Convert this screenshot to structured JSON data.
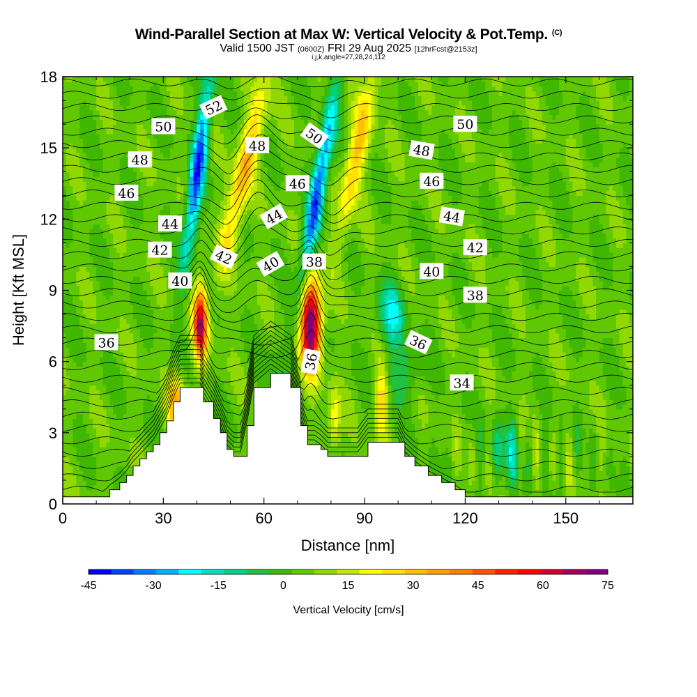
{
  "chart_data": {
    "type": "heatmap",
    "title": "Wind-Parallel Section at Max W: Vertical Velocity & Pot.Temp.",
    "title_mark": "(C)",
    "subtitle_prefix": "Valid 1500 JST",
    "subtitle_utc": "(0600Z)",
    "subtitle_date": "FRI 29 Aug 2025",
    "subtitle_fcst": "[12hrFcst@2153z]",
    "subtitle2": "i,j,k,angle=27,28,24,112",
    "xlabel": "Distance [nm]",
    "ylabel": "Height [Kft MSL]",
    "xlim": [
      0,
      170
    ],
    "ylim": [
      0,
      18
    ],
    "xticks": [
      0,
      30,
      60,
      90,
      120,
      150
    ],
    "yticks": [
      0,
      3,
      6,
      9,
      12,
      15,
      18
    ],
    "colorbar": {
      "label": "Vertical Velocity [cm/s]",
      "ticks": [
        -45,
        -30,
        -15,
        0,
        15,
        30,
        45,
        60,
        75
      ],
      "range": [
        -45,
        75
      ],
      "colors": [
        "#0000ff",
        "#0040ff",
        "#0080ff",
        "#00b0ff",
        "#00ffff",
        "#00e0c0",
        "#00d080",
        "#20c040",
        "#40b800",
        "#60c800",
        "#90d800",
        "#c0e800",
        "#ffff00",
        "#ffe000",
        "#ffc000",
        "#ffa000",
        "#ff8000",
        "#ff5000",
        "#ff2000",
        "#ff0000",
        "#d00030",
        "#a00060",
        "#800080"
      ]
    },
    "terrain_profile": [
      [
        0,
        0.3
      ],
      [
        12,
        0.3
      ],
      [
        14,
        0.6
      ],
      [
        17,
        0.9
      ],
      [
        19,
        1.2
      ],
      [
        21,
        1.6
      ],
      [
        23,
        1.9
      ],
      [
        25,
        2.2
      ],
      [
        27,
        2.5
      ],
      [
        29,
        3.0
      ],
      [
        31,
        3.5
      ],
      [
        33,
        4.3
      ],
      [
        35,
        4.9
      ],
      [
        41,
        4.9
      ],
      [
        42,
        4.3
      ],
      [
        45,
        3.6
      ],
      [
        47,
        3.0
      ],
      [
        49,
        2.3
      ],
      [
        51,
        2.0
      ],
      [
        53,
        2.0
      ],
      [
        55,
        3.3
      ],
      [
        57,
        4.9
      ],
      [
        62,
        5.5
      ],
      [
        68,
        4.9
      ],
      [
        71,
        3.3
      ],
      [
        73,
        2.5
      ],
      [
        75,
        2.5
      ],
      [
        77,
        2.3
      ],
      [
        79,
        2.0
      ],
      [
        88,
        2.0
      ],
      [
        91,
        2.6
      ],
      [
        100,
        2.6
      ],
      [
        102,
        2.0
      ],
      [
        105,
        1.6
      ],
      [
        109,
        1.2
      ],
      [
        113,
        0.9
      ],
      [
        117,
        0.6
      ],
      [
        120,
        0.3
      ],
      [
        170,
        0.3
      ]
    ],
    "vertical_velocity_maxima": [
      {
        "x": 41,
        "y": 7.5,
        "value": 60
      },
      {
        "x": 74,
        "y": 7.5,
        "value": 75
      },
      {
        "x": 34,
        "y": 4.0,
        "value": 35
      },
      {
        "x": 95,
        "y": 4.5,
        "value": 25
      }
    ],
    "vertical_velocity_minima": [
      {
        "x": 41,
        "y": 15.0,
        "value": -40
      },
      {
        "x": 76,
        "y": 13.5,
        "value": -40
      },
      {
        "x": 98,
        "y": 8.0,
        "value": -20
      }
    ],
    "theta_contour_labels": [
      {
        "text": "52",
        "x": 45,
        "y": 16.7,
        "angle": -25
      },
      {
        "text": "50",
        "x": 30,
        "y": 15.9,
        "angle": 0
      },
      {
        "text": "48",
        "x": 23,
        "y": 14.5,
        "angle": 0
      },
      {
        "text": "46",
        "x": 19,
        "y": 13.1,
        "angle": 0
      },
      {
        "text": "48",
        "x": 58,
        "y": 15.1,
        "angle": 0
      },
      {
        "text": "50",
        "x": 75,
        "y": 15.5,
        "angle": 35
      },
      {
        "text": "46",
        "x": 70,
        "y": 13.5,
        "angle": 0
      },
      {
        "text": "44",
        "x": 63,
        "y": 12.1,
        "angle": -30
      },
      {
        "text": "44",
        "x": 32,
        "y": 11.8,
        "angle": 0
      },
      {
        "text": "42",
        "x": 29,
        "y": 10.7,
        "angle": 0
      },
      {
        "text": "42",
        "x": 48,
        "y": 10.4,
        "angle": 25
      },
      {
        "text": "40",
        "x": 62,
        "y": 10.1,
        "angle": -30
      },
      {
        "text": "38",
        "x": 75,
        "y": 10.2,
        "angle": 0
      },
      {
        "text": "40",
        "x": 35,
        "y": 9.4,
        "angle": 0
      },
      {
        "text": "36",
        "x": 13,
        "y": 6.8,
        "angle": 0
      },
      {
        "text": "36",
        "x": 74,
        "y": 6.0,
        "angle": -80
      },
      {
        "text": "50",
        "x": 120,
        "y": 16.0,
        "angle": 0
      },
      {
        "text": "48",
        "x": 107,
        "y": 14.9,
        "angle": 10
      },
      {
        "text": "46",
        "x": 110,
        "y": 13.6,
        "angle": 0
      },
      {
        "text": "44",
        "x": 116,
        "y": 12.1,
        "angle": 10
      },
      {
        "text": "42",
        "x": 123,
        "y": 10.8,
        "angle": 0
      },
      {
        "text": "40",
        "x": 110,
        "y": 9.8,
        "angle": 0
      },
      {
        "text": "38",
        "x": 123,
        "y": 8.8,
        "angle": 0
      },
      {
        "text": "36",
        "x": 106,
        "y": 6.8,
        "angle": 25
      },
      {
        "text": "34",
        "x": 119,
        "y": 5.1,
        "angle": 0
      }
    ],
    "grid": false
  }
}
